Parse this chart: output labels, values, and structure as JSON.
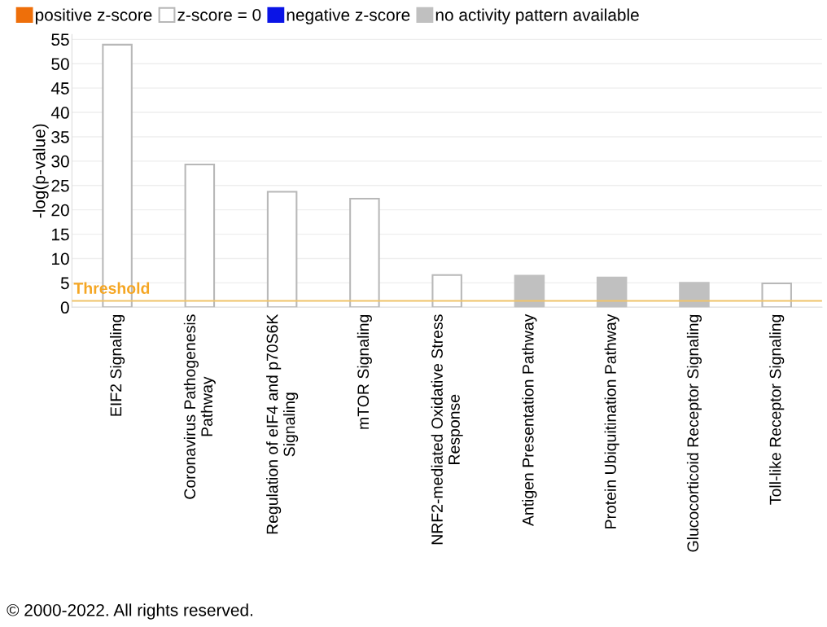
{
  "chart_data": {
    "type": "bar",
    "ylabel": "-log(p-value)",
    "categories": [
      "EIF2 Signaling",
      "Coronavirus Pathogenesis\nPathway",
      "Regulation of eIF4 and p70S6K\nSignaling",
      "mTOR Signaling",
      "NRF2-mediated Oxidative Stress\nResponse",
      "Antigen Presentation Pathway",
      "Protein Ubiquitination Pathway",
      "Glucocorticoid Receptor Signaling",
      "Toll-like Receptor Signaling"
    ],
    "series": [
      {
        "name": "positive z-score",
        "color": "#ee6f0a",
        "values": [
          null,
          null,
          null,
          null,
          null,
          null,
          null,
          null,
          null
        ]
      },
      {
        "name": "z-score = 0",
        "color": "#ffffff",
        "values": [
          53.9,
          29.3,
          23.7,
          22.3,
          6.6,
          null,
          null,
          null,
          4.9
        ]
      },
      {
        "name": "negative z-score",
        "color": "#0a14e6",
        "values": [
          null,
          null,
          null,
          null,
          null,
          null,
          null,
          null,
          null
        ]
      },
      {
        "name": "no activity pattern available",
        "color": "#c0c0c0",
        "values": [
          null,
          null,
          null,
          null,
          null,
          6.5,
          6.1,
          5.0,
          null
        ]
      }
    ],
    "ylim": [
      0,
      56
    ],
    "yticks": [
      0,
      5,
      10,
      15,
      20,
      25,
      30,
      35,
      40,
      45,
      50,
      55
    ],
    "grid": "y",
    "legend": "top left",
    "ref_lines": [
      {
        "axis": "y",
        "value": 1.3,
        "label": "Threshold",
        "color": "#f0c46a"
      }
    ],
    "annotations": [
      "© 2000-2022. All rights reserved."
    ]
  }
}
